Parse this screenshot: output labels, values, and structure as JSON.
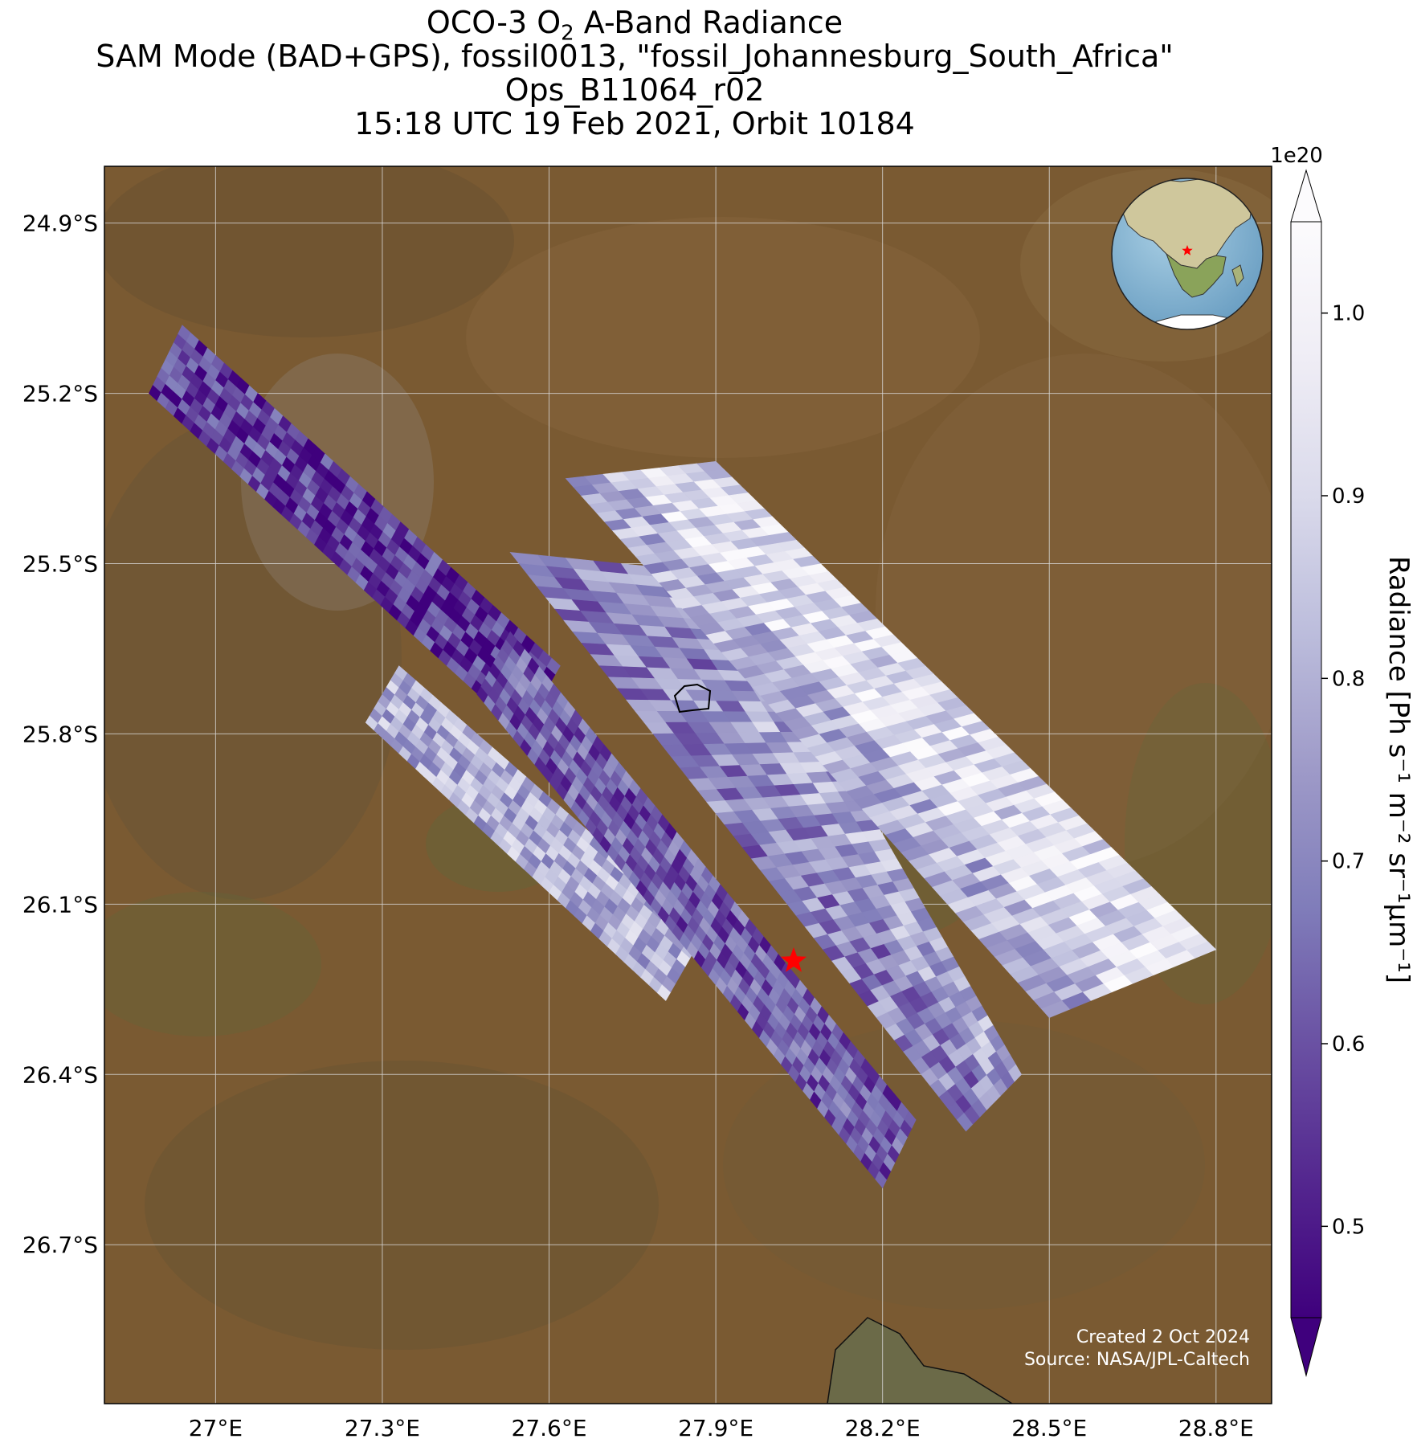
{
  "title": {
    "line1_prefix": "OCO-3 O",
    "line1_sub": "2",
    "line1_suffix": " A-Band Radiance",
    "line2": "SAM Mode (BAD+GPS), fossil0013, \"fossil_Johannesburg_South_Africa\"",
    "line3": "Ops_B11064_r02",
    "line4": "15:18 UTC 19 Feb 2021, Orbit 10184"
  },
  "map": {
    "lon_range": [
      26.8,
      28.9
    ],
    "lat_range": [
      -26.98,
      -24.8
    ],
    "lat_ticks": [
      {
        "value": -24.9,
        "label": "24.9°S"
      },
      {
        "value": -25.2,
        "label": "25.2°S"
      },
      {
        "value": -25.5,
        "label": "25.5°S"
      },
      {
        "value": -25.8,
        "label": "25.8°S"
      },
      {
        "value": -26.1,
        "label": "26.1°S"
      },
      {
        "value": -26.4,
        "label": "26.4°S"
      },
      {
        "value": -26.7,
        "label": "26.7°S"
      }
    ],
    "lon_ticks": [
      {
        "value": 27.0,
        "label": "27°E"
      },
      {
        "value": 27.3,
        "label": "27.3°E"
      },
      {
        "value": 27.6,
        "label": "27.6°E"
      },
      {
        "value": 27.9,
        "label": "27.9°E"
      },
      {
        "value": 28.2,
        "label": "28.2°E"
      },
      {
        "value": 28.5,
        "label": "28.5°E"
      },
      {
        "value": 28.8,
        "label": "28.8°E"
      }
    ],
    "target": {
      "lon": 28.04,
      "lat": -26.2,
      "marker": "red-star"
    },
    "basemap": "satellite imagery (brown/green terrain)",
    "inset": "globe centered on Africa with red star at target"
  },
  "swaths": [
    {
      "name": "swath-1",
      "corners": [
        [
          26.88,
          -25.2
        ],
        [
          26.94,
          -25.08
        ],
        [
          27.62,
          -25.68
        ],
        [
          27.55,
          -25.8
        ]
      ],
      "mean": 0.55
    },
    {
      "name": "swath-2",
      "corners": [
        [
          27.27,
          -25.78
        ],
        [
          27.33,
          -25.68
        ],
        [
          27.88,
          -26.15
        ],
        [
          27.81,
          -26.27
        ]
      ],
      "mean": 0.8
    },
    {
      "name": "swath-3",
      "corners": [
        [
          27.47,
          -25.73
        ],
        [
          27.53,
          -25.62
        ],
        [
          28.26,
          -26.48
        ],
        [
          28.2,
          -26.6
        ]
      ],
      "mean": 0.62
    },
    {
      "name": "swath-4",
      "corners": [
        [
          27.53,
          -25.48
        ],
        [
          27.93,
          -25.52
        ],
        [
          28.45,
          -26.4
        ],
        [
          28.35,
          -26.5
        ]
      ],
      "mean": 0.7
    },
    {
      "name": "swath-5",
      "corners": [
        [
          27.63,
          -25.35
        ],
        [
          27.9,
          -25.32
        ],
        [
          28.8,
          -26.18
        ],
        [
          28.5,
          -26.3
        ]
      ],
      "mean": 0.92
    }
  ],
  "colorbar": {
    "label": "Radiance [Ph s⁻¹ m⁻² sr⁻¹μm⁻¹]",
    "exponent": "1e20",
    "min": 0.45,
    "max": 1.05,
    "ticks": [
      {
        "value": 0.5,
        "label": "0.5"
      },
      {
        "value": 0.6,
        "label": "0.6"
      },
      {
        "value": 0.7,
        "label": "0.7"
      },
      {
        "value": 0.8,
        "label": "0.8"
      },
      {
        "value": 0.9,
        "label": "0.9"
      },
      {
        "value": 1.0,
        "label": "1.0"
      }
    ],
    "colors": [
      "#3f007d",
      "#54278f",
      "#6a51a3",
      "#807dba",
      "#9e9ac8",
      "#bcbddc",
      "#dadaeb",
      "#efedf5",
      "#fcfbfd"
    ]
  },
  "footer": {
    "created": "Created 2 Oct 2024",
    "source": "Source: NASA/JPL-Caltech"
  }
}
